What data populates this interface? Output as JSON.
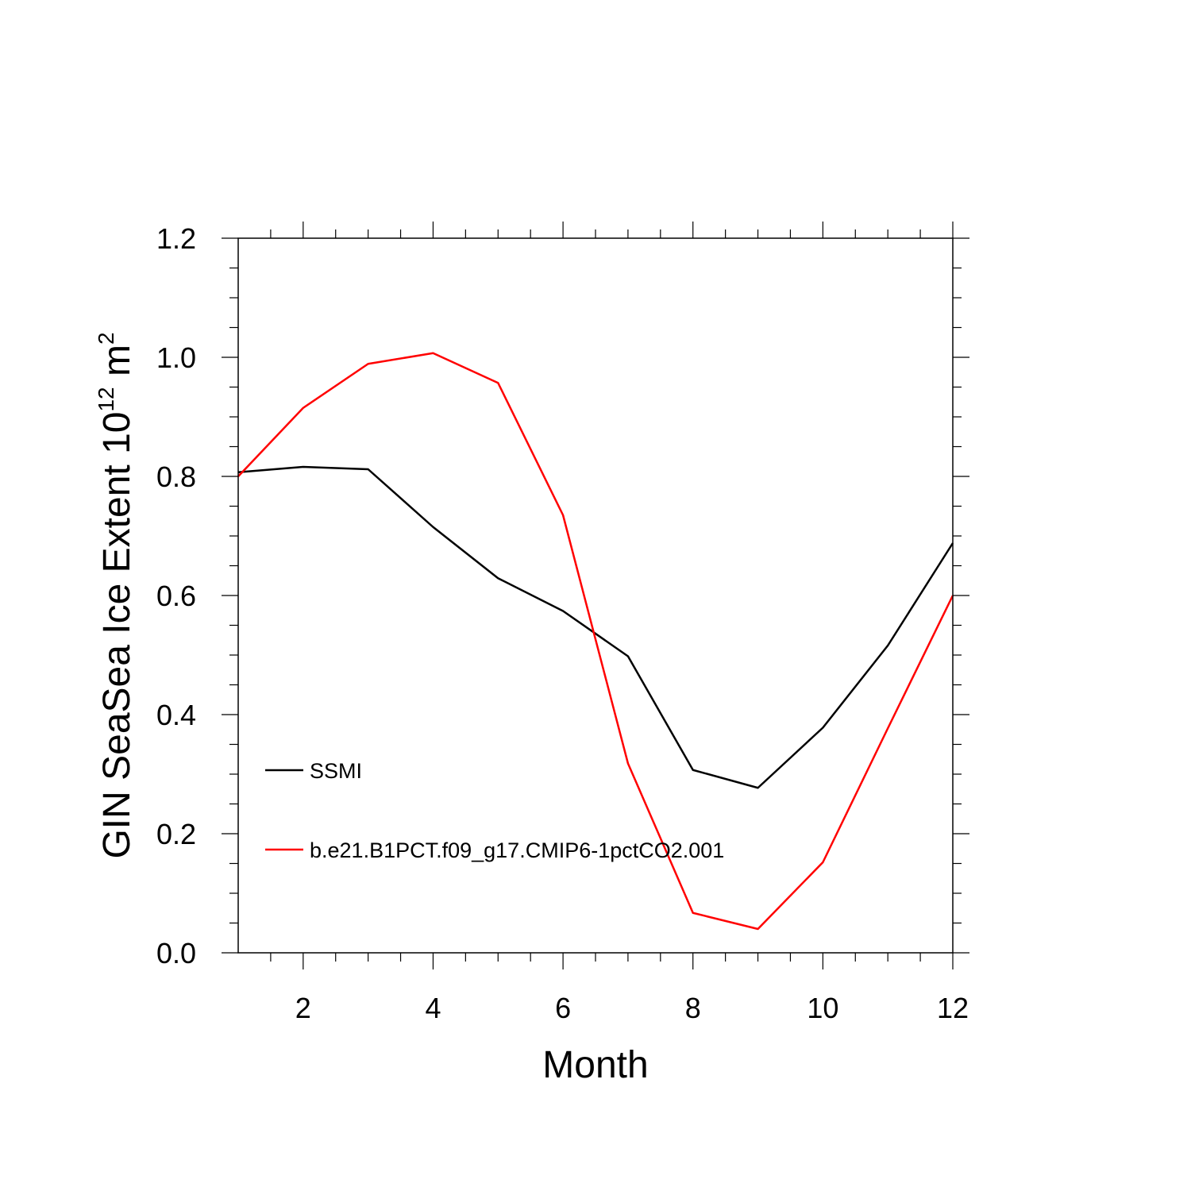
{
  "chart_data": {
    "type": "line",
    "title": "",
    "xlabel": "Month",
    "ylabel": {
      "main": "GIN SeaSea Ice Extent 10",
      "exponent": "12",
      "unit": " m",
      "unit_exponent": "2"
    },
    "xlim": [
      1,
      12
    ],
    "ylim": [
      0,
      1.2
    ],
    "x_ticks": [
      2,
      4,
      6,
      8,
      10,
      12
    ],
    "x_tick_labels": [
      "2",
      "4",
      "6",
      "8",
      "10",
      "12"
    ],
    "y_ticks": [
      0.0,
      0.2,
      0.4,
      0.6,
      0.8,
      1.0,
      1.2
    ],
    "y_tick_labels": [
      "0.0",
      "0.2",
      "0.4",
      "0.6",
      "0.8",
      "1.0",
      "1.2"
    ],
    "x": [
      1,
      2,
      3,
      4,
      5,
      6,
      7,
      8,
      9,
      10,
      11,
      12
    ],
    "series": [
      {
        "name": "SSMI",
        "color": "#000000",
        "values": [
          0.807,
          0.816,
          0.812,
          0.715,
          0.629,
          0.574,
          0.498,
          0.307,
          0.277,
          0.378,
          0.516,
          0.688
        ]
      },
      {
        "name": "b.e21.B1PCT.f09_g17.CMIP6-1pctCO2.001",
        "color": "#ff0000",
        "values": [
          0.8,
          0.915,
          0.989,
          1.007,
          0.957,
          0.735,
          0.318,
          0.067,
          0.04,
          0.152,
          0.377,
          0.6
        ]
      }
    ],
    "grid": false,
    "legend_position": "lower-left inside"
  }
}
